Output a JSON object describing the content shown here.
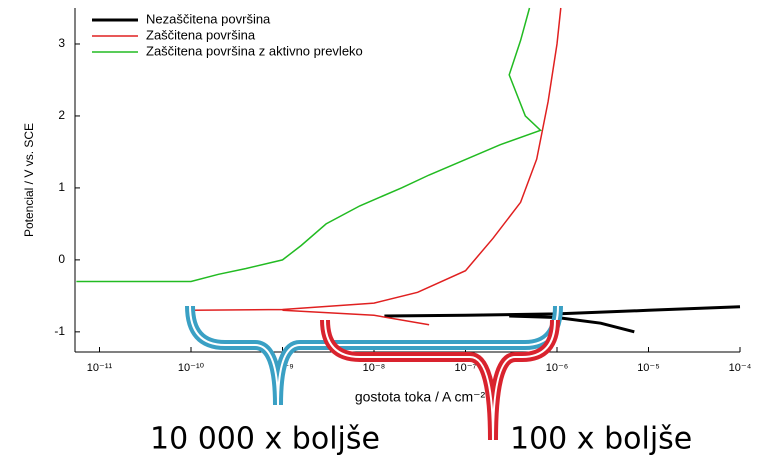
{
  "chart_data": {
    "type": "line",
    "x_label": "gostota toka / A cm⁻²",
    "y_label": "Potencial / V vs. SCE",
    "log_x": true,
    "xlim": [
      5.4e-12,
      0.0001
    ],
    "ylim": [
      -1.28,
      3.5
    ],
    "xticks": [
      {
        "value": 1e-11,
        "label": "10⁻¹¹"
      },
      {
        "value": 1e-10,
        "label": "10⁻¹⁰"
      },
      {
        "value": 1e-09,
        "label": "10⁻⁹"
      },
      {
        "value": 1e-08,
        "label": "10⁻⁸"
      },
      {
        "value": 1e-07,
        "label": "10⁻⁷"
      },
      {
        "value": 1e-06,
        "label": "10⁻⁶"
      },
      {
        "value": 1e-05,
        "label": "10⁻⁵"
      },
      {
        "value": 0.0001,
        "label": "10⁻⁴"
      }
    ],
    "yticks": [
      -1,
      0,
      1,
      2,
      3
    ],
    "legend": "top-left",
    "series": [
      {
        "name": "Nezaščitena površina",
        "color": "#000000",
        "width": 3,
        "x": [
          1.3e-08,
          1e-07,
          1e-06,
          1e-05,
          0.0001,
          null,
          3e-07,
          1e-06,
          3e-06,
          7e-06
        ],
        "values": [
          -0.78,
          -0.77,
          -0.75,
          -0.7,
          -0.65,
          null,
          -0.78,
          -0.8,
          -0.88,
          -1.0
        ]
      },
      {
        "name": "Zaščitena površina",
        "color": "#e02020",
        "width": 1.5,
        "x": [
          1e-10,
          1e-09,
          1e-08,
          3e-08,
          1e-07,
          2e-07,
          4e-07,
          6e-07,
          8e-07,
          1e-06,
          1.1e-06,
          null,
          1e-09,
          1e-08,
          4e-08
        ],
        "values": [
          -0.7,
          -0.69,
          -0.6,
          -0.45,
          -0.15,
          0.3,
          0.8,
          1.4,
          2.2,
          3.0,
          3.5,
          null,
          -0.7,
          -0.77,
          -0.9
        ]
      },
      {
        "name": "Zaščitena površina z aktivno prevleko",
        "color": "#22bb22",
        "width": 1.5,
        "x": [
          5.6e-12,
          1e-10,
          2e-10,
          4e-10,
          1e-09,
          1.6e-09,
          3e-09,
          7e-09,
          2e-08,
          4e-08,
          2.4e-07,
          6.6e-07,
          4.5e-07,
          3e-07,
          4e-07,
          5e-07
        ],
        "values": [
          -0.3,
          -0.3,
          -0.2,
          -0.12,
          0.0,
          0.2,
          0.5,
          0.75,
          1.0,
          1.18,
          1.6,
          1.8,
          2.0,
          2.57,
          3.05,
          3.5
        ]
      }
    ],
    "annotations": [
      "10 000 x boljše",
      "100 x boljše"
    ]
  }
}
